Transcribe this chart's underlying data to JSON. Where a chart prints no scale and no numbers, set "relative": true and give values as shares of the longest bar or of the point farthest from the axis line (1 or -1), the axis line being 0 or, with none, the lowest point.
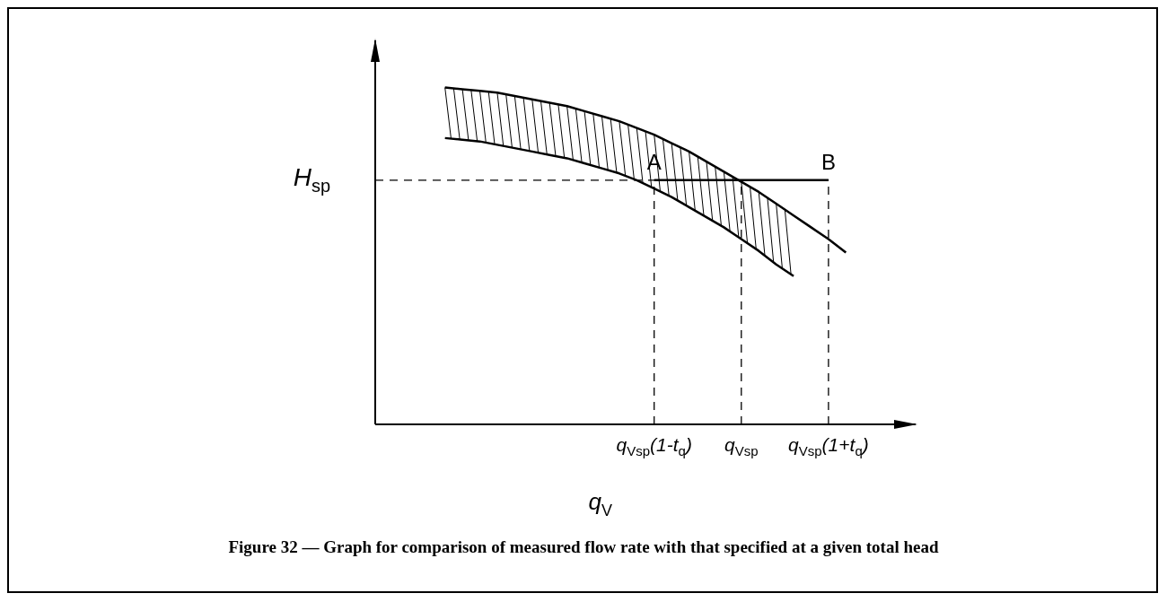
{
  "chart_data": {
    "type": "line",
    "relative": true,
    "title": "Figure 32 — Graph for comparison of measured flow rate with that specified at a given total head",
    "xlabel": "q$_{V}$",
    "categories": [
      null,
      null,
      null,
      null,
      null,
      null,
      null,
      null,
      null,
      null,
      null,
      null,
      null,
      null,
      null,
      null,
      "q$_{Vsp}$(1-t$_{q}$)",
      null,
      null,
      null,
      null,
      "q$_{Vsp}$",
      null,
      null,
      null,
      null,
      "q$_{Vsp}$(1+t$_{q}$)",
      null,
      null,
      null,
      null,
      null
    ],
    "series": [
      {
        "color": "#000000",
        "values": [
          null,
          null,
          null,
          null,
          1.0,
          0.995,
          0.99,
          0.985,
          0.975,
          0.965,
          0.955,
          0.945,
          0.93,
          0.915,
          0.9,
          0.88,
          0.86,
          0.835,
          0.81,
          0.78,
          0.75,
          0.72,
          0.69,
          0.655,
          0.62,
          0.585,
          0.55,
          0.51,
          null,
          null,
          null,
          null
        ]
      },
      {
        "color": "#000000",
        "values": [
          null,
          null,
          null,
          null,
          0.85,
          0.845,
          0.84,
          0.83,
          0.82,
          0.81,
          0.8,
          0.79,
          0.775,
          0.76,
          0.745,
          0.725,
          0.7,
          0.675,
          0.645,
          0.615,
          0.585,
          0.55,
          0.515,
          0.475,
          0.44,
          null,
          null,
          null,
          null,
          null,
          null,
          null
        ]
      },
      {
        "color": "#000000",
        "values": [
          null,
          null,
          null,
          null,
          null,
          null,
          null,
          null,
          null,
          null,
          null,
          null,
          null,
          null,
          null,
          null,
          0.725,
          0.725,
          0.725,
          0.725,
          0.725,
          0.725,
          0.725,
          0.725,
          0.725,
          0.725,
          0.725,
          null,
          null,
          null,
          null,
          null
        ]
      }
    ],
    "ref_lines": [
      {
        "axis": "y",
        "value": 0.725,
        "label": "H$_{sp}$",
        "line_style": "dashed"
      },
      {
        "axis": "x",
        "value": "q$_{Vsp}$(1-t$_{q}$)",
        "line_style": "dashed"
      },
      {
        "axis": "x",
        "value": "q$_{Vsp}$",
        "line_style": "dashed"
      },
      {
        "axis": "x",
        "value": "q$_{Vsp}$(1+t$_{q}$)",
        "line_style": "dashed"
      }
    ],
    "annotations": [
      {
        "text": "A",
        "x": "q$_{Vsp}$(1-t$_{q}$)",
        "y": 0.725
      },
      {
        "text": "B",
        "x": "q$_{Vsp}$(1+t$_{q}$)",
        "y": 0.725
      }
    ],
    "legend": false,
    "grid": false,
    "marker": "none",
    "line_style": "solid"
  }
}
